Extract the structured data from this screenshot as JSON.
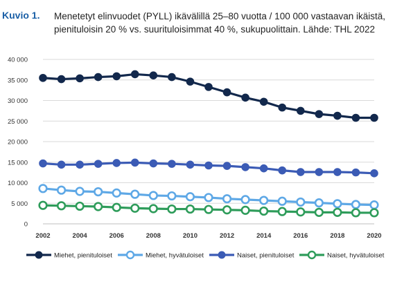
{
  "figure": {
    "label": "Kuvio 1.",
    "title_line1": "Menetetyt elinvuodet (PYLL) ikävälillä 25–80 vuotta / 100 000 vastaavan ikäistä,",
    "title_line2": "pienituloisin 20 % vs. suurituloisimmat 40 %, sukupuolittain. Lähde: THL 2022"
  },
  "chart_data": {
    "type": "line",
    "title": "Menetetyt elinvuodet (PYLL) ikävälillä 25–80 vuotta / 100 000 vastaavan ikäistä, pienituloisin 20 % vs. suurituloisimmat 40 %, sukupuolittain. Lähde: THL 2022",
    "xlabel": "",
    "ylabel": "",
    "x": [
      2002,
      2003,
      2004,
      2005,
      2006,
      2007,
      2008,
      2009,
      2010,
      2011,
      2012,
      2013,
      2014,
      2015,
      2016,
      2017,
      2018,
      2019,
      2020
    ],
    "x_ticks": [
      "2002",
      "2004",
      "2006",
      "2008",
      "2010",
      "2012",
      "2014",
      "2016",
      "2018",
      "2020"
    ],
    "ylim": [
      0,
      40000
    ],
    "y_ticks": [
      "0",
      "5 000",
      "10 000",
      "15 000",
      "20 000",
      "25 000",
      "30 000",
      "35 000",
      "40 000"
    ],
    "grid": true,
    "legend_position": "bottom",
    "series": [
      {
        "name": "Miehet, pienituloiset",
        "color": "#12284c",
        "filled": true,
        "values": [
          35500,
          35200,
          35400,
          35700,
          35900,
          36400,
          36100,
          35700,
          34600,
          33300,
          32000,
          30700,
          29700,
          28300,
          27500,
          26700,
          26300,
          25800,
          25800
        ]
      },
      {
        "name": "Miehet, hyvätuloiset",
        "color": "#5ea8e6",
        "filled": false,
        "values": [
          8600,
          8200,
          7900,
          7800,
          7500,
          7200,
          6900,
          6800,
          6600,
          6400,
          6100,
          5900,
          5700,
          5500,
          5300,
          5100,
          4900,
          4700,
          4600
        ]
      },
      {
        "name": "Naiset, pienituloiset",
        "color": "#3b5bb5",
        "filled": true,
        "values": [
          14700,
          14400,
          14400,
          14600,
          14800,
          14900,
          14700,
          14600,
          14400,
          14200,
          14100,
          13800,
          13500,
          13000,
          12600,
          12600,
          12600,
          12500,
          12300
        ]
      },
      {
        "name": "Naiset, hyvätuloiset",
        "color": "#2e9c5a",
        "filled": false,
        "values": [
          4500,
          4400,
          4300,
          4200,
          4000,
          3800,
          3700,
          3600,
          3600,
          3500,
          3400,
          3300,
          3100,
          3000,
          2900,
          2800,
          2800,
          2700,
          2700
        ]
      }
    ]
  }
}
